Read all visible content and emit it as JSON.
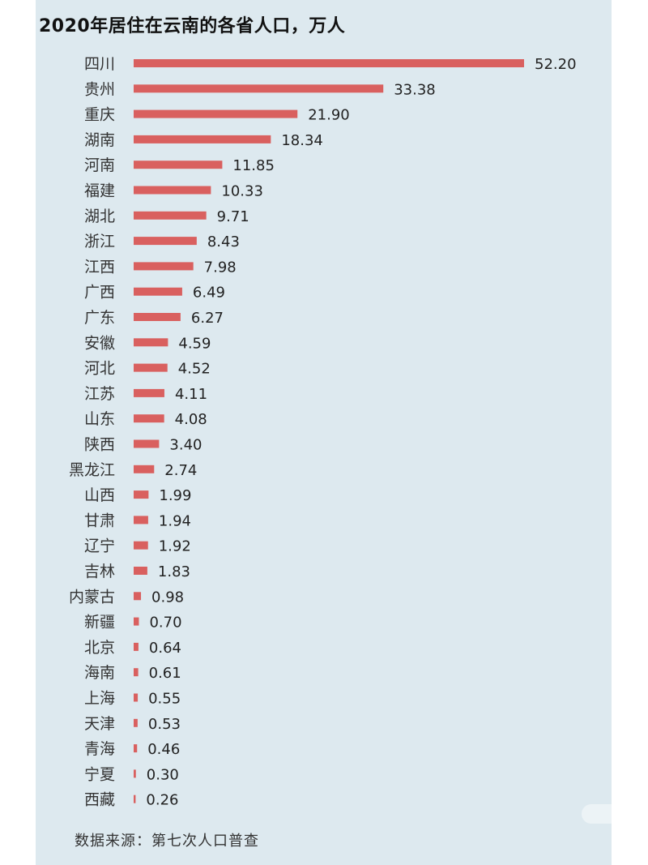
{
  "title": "2020年居住在云南的各省人口，万人",
  "source": "数据来源：第七次人口普查",
  "colors": {
    "bar": "#d9605f",
    "background": "#dde9ef"
  },
  "chart_data": {
    "type": "bar",
    "orientation": "horizontal",
    "title": "2020年居住在云南的各省人口，万人",
    "categories": [
      "四川",
      "贵州",
      "重庆",
      "湖南",
      "河南",
      "福建",
      "湖北",
      "浙江",
      "江西",
      "广西",
      "广东",
      "安徽",
      "河北",
      "江苏",
      "山东",
      "陕西",
      "黑龙江",
      "山西",
      "甘肃",
      "辽宁",
      "吉林",
      "内蒙古",
      "新疆",
      "北京",
      "海南",
      "上海",
      "天津",
      "青海",
      "宁夏",
      "西藏"
    ],
    "values": [
      52.2,
      33.38,
      21.9,
      18.34,
      11.85,
      10.33,
      9.71,
      8.43,
      7.98,
      6.49,
      6.27,
      4.59,
      4.52,
      4.11,
      4.08,
      3.4,
      2.74,
      1.99,
      1.94,
      1.92,
      1.83,
      0.98,
      0.7,
      0.64,
      0.61,
      0.55,
      0.53,
      0.46,
      0.3,
      0.26
    ],
    "value_labels": [
      "52.20",
      "33.38",
      "21.90",
      "18.34",
      "11.85",
      "10.33",
      "9.71",
      "8.43",
      "7.98",
      "6.49",
      "6.27",
      "4.59",
      "4.52",
      "4.11",
      "4.08",
      "3.40",
      "2.74",
      "1.99",
      "1.94",
      "1.92",
      "1.83",
      "0.98",
      "0.70",
      "0.64",
      "0.61",
      "0.55",
      "0.53",
      "0.46",
      "0.30",
      "0.26"
    ],
    "xlim": [
      0,
      52.2
    ],
    "grid": false,
    "legend": "none"
  }
}
